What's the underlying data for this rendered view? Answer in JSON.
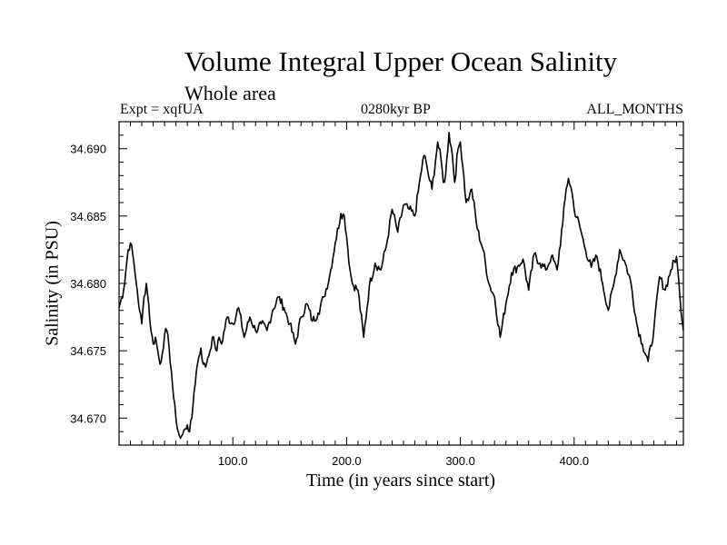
{
  "header": {
    "title": "Volume Integral Upper Ocean Salinity",
    "subtitle": "Whole area",
    "experiment": "Expt = xqfUA",
    "period": "0280kyr BP",
    "months": "ALL_MONTHS"
  },
  "chart_data": {
    "type": "line",
    "title": "Volume Integral Upper Ocean Salinity",
    "xlabel": "Time (in years since start)",
    "ylabel": "Salinity (in PSU)",
    "xlim": [
      0,
      496
    ],
    "ylim": [
      34.668,
      34.692
    ],
    "xticks": [
      100,
      200,
      300,
      400
    ],
    "xtick_labels": [
      "100.0",
      "200.0",
      "300.0",
      "400.0"
    ],
    "yticks": [
      34.67,
      34.675,
      34.68,
      34.685,
      34.69
    ],
    "ytick_labels": [
      "34.670",
      "34.675",
      "34.680",
      "34.685",
      "34.690"
    ],
    "grid": false,
    "series": [
      {
        "name": "Salinity",
        "color": "#000000",
        "x": [
          0,
          4,
          8,
          10,
          12,
          14,
          16,
          18,
          20,
          22,
          24,
          26,
          28,
          30,
          32,
          34,
          36,
          38,
          40,
          42,
          44,
          46,
          48,
          50,
          52,
          54,
          56,
          58,
          60,
          62,
          64,
          66,
          68,
          70,
          72,
          74,
          76,
          78,
          80,
          82,
          84,
          86,
          88,
          90,
          95,
          100,
          105,
          110,
          115,
          120,
          125,
          130,
          135,
          140,
          145,
          150,
          155,
          160,
          165,
          170,
          175,
          180,
          185,
          190,
          195,
          198,
          200,
          203,
          205,
          210,
          215,
          220,
          225,
          230,
          235,
          240,
          245,
          250,
          255,
          260,
          265,
          268,
          270,
          272,
          275,
          278,
          280,
          283,
          285,
          287,
          290,
          293,
          295,
          298,
          300,
          303,
          305,
          308,
          310,
          315,
          320,
          325,
          330,
          335,
          340,
          345,
          350,
          355,
          360,
          365,
          370,
          375,
          380,
          385,
          390,
          393,
          395,
          398,
          400,
          405,
          410,
          415,
          420,
          425,
          430,
          435,
          440,
          445,
          450,
          455,
          460,
          465,
          470,
          475,
          480,
          485,
          490,
          493,
          496
        ],
        "values": [
          34.6782,
          34.6795,
          34.6825,
          34.683,
          34.6822,
          34.6808,
          34.6795,
          34.678,
          34.677,
          34.679,
          34.68,
          34.6785,
          34.6765,
          34.6755,
          34.676,
          34.675,
          34.674,
          34.6748,
          34.6762,
          34.6765,
          34.6752,
          34.6735,
          34.6715,
          34.67,
          34.669,
          34.6685,
          34.6688,
          34.6692,
          34.6695,
          34.669,
          34.67,
          34.672,
          34.6735,
          34.6745,
          34.6752,
          34.674,
          34.6738,
          34.6745,
          34.675,
          34.676,
          34.6755,
          34.675,
          34.676,
          34.6755,
          34.6775,
          34.677,
          34.6782,
          34.676,
          34.6775,
          34.6765,
          34.677,
          34.6765,
          34.678,
          34.679,
          34.6782,
          34.677,
          34.6755,
          34.6775,
          34.6785,
          34.6772,
          34.6778,
          34.679,
          34.6805,
          34.683,
          34.6852,
          34.685,
          34.6835,
          34.681,
          34.68,
          34.6795,
          34.676,
          34.6798,
          34.6815,
          34.681,
          34.6828,
          34.6855,
          34.6838,
          34.6858,
          34.6855,
          34.685,
          34.688,
          34.6895,
          34.689,
          34.688,
          34.687,
          34.689,
          34.6905,
          34.6892,
          34.6875,
          34.688,
          34.6912,
          34.6895,
          34.6875,
          34.69,
          34.6905,
          34.688,
          34.686,
          34.6865,
          34.687,
          34.684,
          34.6825,
          34.68,
          34.679,
          34.676,
          34.6785,
          34.6808,
          34.6812,
          34.6818,
          34.6795,
          34.6822,
          34.6815,
          34.681,
          34.682,
          34.681,
          34.6845,
          34.687,
          34.6878,
          34.6868,
          34.6855,
          34.6842,
          34.6825,
          34.6812,
          34.682,
          34.68,
          34.678,
          34.68,
          34.6825,
          34.6815,
          34.68,
          34.677,
          34.6755,
          34.6742,
          34.6765,
          34.6805,
          34.6795,
          34.681,
          34.682,
          34.679,
          34.6765
        ]
      }
    ]
  }
}
